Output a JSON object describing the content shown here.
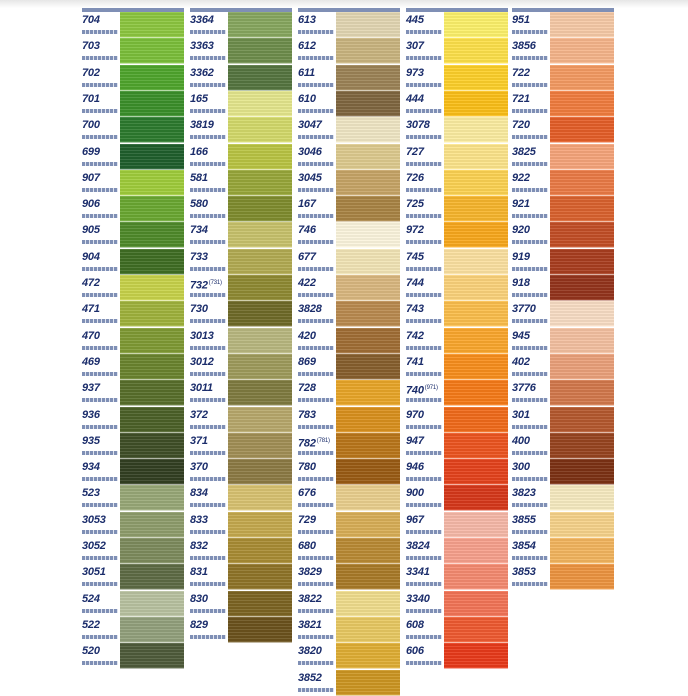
{
  "columns": [
    {
      "rows": [
        {
          "code": "704",
          "color": "#8cc63f"
        },
        {
          "code": "703",
          "color": "#7bbf3a"
        },
        {
          "code": "702",
          "color": "#4fa52c"
        },
        {
          "code": "701",
          "color": "#3b8f2a"
        },
        {
          "code": "700",
          "color": "#2c7a2e"
        },
        {
          "code": "699",
          "color": "#205f2c"
        },
        {
          "code": "907",
          "color": "#9fcc3b"
        },
        {
          "code": "906",
          "color": "#6aa832"
        },
        {
          "code": "905",
          "color": "#4f8a2a"
        },
        {
          "code": "904",
          "color": "#3f6e24"
        },
        {
          "code": "472",
          "color": "#c7d24a"
        },
        {
          "code": "471",
          "color": "#9fb23c"
        },
        {
          "code": "470",
          "color": "#7f9a34"
        },
        {
          "code": "469",
          "color": "#6a842e"
        },
        {
          "code": "937",
          "color": "#586f2b"
        },
        {
          "code": "936",
          "color": "#4c6128"
        },
        {
          "code": "935",
          "color": "#3f4f27"
        },
        {
          "code": "934",
          "color": "#333f22"
        },
        {
          "code": "523",
          "color": "#98a877"
        },
        {
          "code": "3053",
          "color": "#8e9d6c"
        },
        {
          "code": "3052",
          "color": "#7d8b5d"
        },
        {
          "code": "3051",
          "color": "#5e6b45"
        },
        {
          "code": "524",
          "color": "#b8c2a0"
        },
        {
          "code": "522",
          "color": "#92a07c"
        },
        {
          "code": "520",
          "color": "#4f5c3b"
        }
      ]
    },
    {
      "rows": [
        {
          "code": "3364",
          "color": "#87a75f"
        },
        {
          "code": "3363",
          "color": "#6e8d4c"
        },
        {
          "code": "3362",
          "color": "#557540"
        },
        {
          "code": "165",
          "color": "#e4e68c"
        },
        {
          "code": "3819",
          "color": "#d3d96a"
        },
        {
          "code": "166",
          "color": "#b9c443"
        },
        {
          "code": "581",
          "color": "#98a73a"
        },
        {
          "code": "580",
          "color": "#7f8c2e"
        },
        {
          "code": "734",
          "color": "#c7c26b"
        },
        {
          "code": "733",
          "color": "#b2ab52"
        },
        {
          "code": "732",
          "sup": "(731)",
          "color": "#8f8a33"
        },
        {
          "code": "730",
          "color": "#6f6a28"
        },
        {
          "code": "3013",
          "color": "#b8b77f"
        },
        {
          "code": "3012",
          "color": "#9e9b5c"
        },
        {
          "code": "3011",
          "color": "#7f7b40"
        },
        {
          "code": "372",
          "color": "#b7a86c"
        },
        {
          "code": "371",
          "color": "#a18f55"
        },
        {
          "code": "370",
          "color": "#8c7a45"
        },
        {
          "code": "834",
          "color": "#d8c271"
        },
        {
          "code": "833",
          "color": "#c4a94e"
        },
        {
          "code": "832",
          "color": "#a98c34"
        },
        {
          "code": "831",
          "color": "#8f7428"
        },
        {
          "code": "830",
          "color": "#7c6423"
        },
        {
          "code": "829",
          "color": "#6b521d"
        }
      ]
    },
    {
      "rows": [
        {
          "code": "613",
          "color": "#e2d6b2"
        },
        {
          "code": "612",
          "color": "#c9b47f"
        },
        {
          "code": "611",
          "color": "#9c8356"
        },
        {
          "code": "610",
          "color": "#806640"
        },
        {
          "code": "3047",
          "color": "#efe6c4"
        },
        {
          "code": "3046",
          "color": "#ddca8e"
        },
        {
          "code": "3045",
          "color": "#c6a466"
        },
        {
          "code": "167",
          "color": "#a98444"
        },
        {
          "code": "746",
          "color": "#fbf4dc"
        },
        {
          "code": "677",
          "color": "#f1e4b5"
        },
        {
          "code": "422",
          "color": "#d9b77f"
        },
        {
          "code": "3828",
          "color": "#b98a4f"
        },
        {
          "code": "420",
          "color": "#a06e35"
        },
        {
          "code": "869",
          "color": "#875f2d"
        },
        {
          "code": "728",
          "color": "#e8a528"
        },
        {
          "code": "783",
          "color": "#d9901e"
        },
        {
          "code": "782",
          "sup": "(781)",
          "color": "#b9761a"
        },
        {
          "code": "780",
          "color": "#9a5c14"
        },
        {
          "code": "676",
          "color": "#e9cf8d"
        },
        {
          "code": "729",
          "color": "#d8ae56"
        },
        {
          "code": "680",
          "color": "#b98a34"
        },
        {
          "code": "3829",
          "color": "#a97a28"
        },
        {
          "code": "3822",
          "color": "#efdc8c"
        },
        {
          "code": "3821",
          "color": "#e8c862"
        },
        {
          "code": "3820",
          "color": "#dfae34"
        },
        {
          "code": "3852",
          "color": "#cc9622"
        }
      ]
    },
    {
      "rows": [
        {
          "code": "445",
          "color": "#fcf06a"
        },
        {
          "code": "307",
          "color": "#fde04a"
        },
        {
          "code": "973",
          "color": "#fdd02a"
        },
        {
          "code": "444",
          "color": "#fbbf18"
        },
        {
          "code": "3078",
          "color": "#fbeca0"
        },
        {
          "code": "727",
          "color": "#fce48a"
        },
        {
          "code": "726",
          "color": "#fcd252"
        },
        {
          "code": "725",
          "color": "#f7b52c"
        },
        {
          "code": "972",
          "color": "#f8a81c"
        },
        {
          "code": "745",
          "color": "#fbe0a0"
        },
        {
          "code": "744",
          "color": "#fbd27a"
        },
        {
          "code": "743",
          "color": "#fbbe4c"
        },
        {
          "code": "742",
          "color": "#faa62c"
        },
        {
          "code": "741",
          "color": "#f88e1c"
        },
        {
          "code": "740",
          "sup": "(971)",
          "color": "#f57a18"
        },
        {
          "code": "970",
          "color": "#f06a1a"
        },
        {
          "code": "947",
          "color": "#ec5420"
        },
        {
          "code": "946",
          "color": "#e4421c"
        },
        {
          "code": "900",
          "color": "#d6381a"
        },
        {
          "code": "967",
          "color": "#f6b8a8"
        },
        {
          "code": "3824",
          "color": "#f7a08c"
        },
        {
          "code": "3341",
          "color": "#f48a70"
        },
        {
          "code": "3340",
          "color": "#f27456"
        },
        {
          "code": "608",
          "color": "#ee5a30"
        },
        {
          "code": "606",
          "color": "#e83a1a"
        }
      ]
    },
    {
      "rows": [
        {
          "code": "951",
          "color": "#f6c9a6"
        },
        {
          "code": "3856",
          "color": "#f5b48a"
        },
        {
          "code": "722",
          "color": "#f39a62"
        },
        {
          "code": "721",
          "color": "#f07c3e"
        },
        {
          "code": "720",
          "color": "#e45e28"
        },
        {
          "code": "3825",
          "color": "#f6a47a"
        },
        {
          "code": "922",
          "color": "#ea7a46"
        },
        {
          "code": "921",
          "color": "#d9622e"
        },
        {
          "code": "920",
          "color": "#c24e26"
        },
        {
          "code": "919",
          "color": "#a93e20"
        },
        {
          "code": "918",
          "color": "#93341c"
        },
        {
          "code": "3770",
          "color": "#f8dcc4"
        },
        {
          "code": "945",
          "color": "#f3c0a0"
        },
        {
          "code": "402",
          "color": "#eaa07a"
        },
        {
          "code": "3776",
          "color": "#d2784c"
        },
        {
          "code": "301",
          "color": "#b4582e"
        },
        {
          "code": "400",
          "color": "#974420"
        },
        {
          "code": "300",
          "color": "#7c3214"
        },
        {
          "code": "3823",
          "color": "#f6eac0"
        },
        {
          "code": "3855",
          "color": "#f6d28a"
        },
        {
          "code": "3854",
          "color": "#f2b45e"
        },
        {
          "code": "3853",
          "color": "#ec9440"
        }
      ]
    }
  ]
}
